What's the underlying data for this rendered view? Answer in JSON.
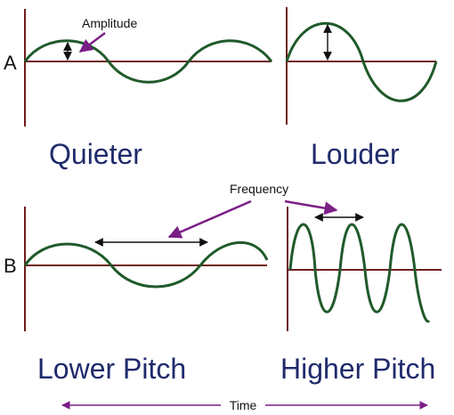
{
  "rows": {
    "a_label": "A",
    "b_label": "B"
  },
  "panels": {
    "quieter": "Quieter",
    "louder": "Louder",
    "lower_pitch": "Lower Pitch",
    "higher_pitch": "Higher Pitch"
  },
  "annotations": {
    "amplitude": "Amplitude",
    "frequency": "Frequency",
    "time": "Time"
  },
  "colors": {
    "axis": "#6e1e1e",
    "wave": "#1f5a2a",
    "pointer": "#7a1f86",
    "title": "#1f2a6b"
  }
}
